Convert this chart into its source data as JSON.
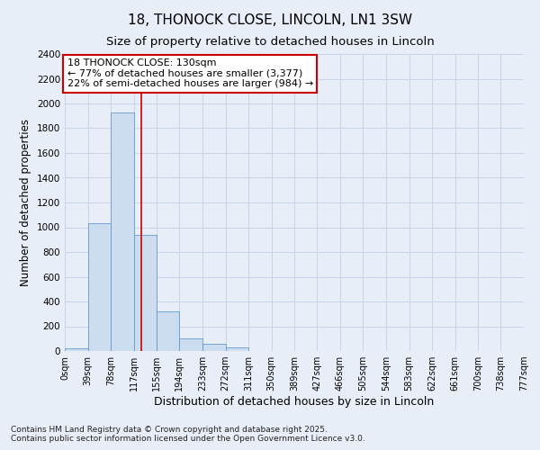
{
  "title": "18, THONOCK CLOSE, LINCOLN, LN1 3SW",
  "subtitle": "Size of property relative to detached houses in Lincoln",
  "xlabel": "Distribution of detached houses by size in Lincoln",
  "ylabel": "Number of detached properties",
  "bar_edges": [
    0,
    39,
    78,
    117,
    155,
    194,
    233,
    272,
    311,
    350,
    389,
    427,
    466,
    505,
    544,
    583,
    622,
    661,
    700,
    738,
    777
  ],
  "bar_values": [
    25,
    1030,
    1925,
    940,
    320,
    105,
    55,
    30,
    0,
    0,
    0,
    0,
    0,
    0,
    0,
    0,
    0,
    0,
    0,
    0
  ],
  "bar_color": "#ccddf0",
  "bar_edge_color": "#6699cc",
  "grid_color": "#c8d4e8",
  "background_color": "#e8eef8",
  "property_size": 130,
  "vline_color": "#cc0000",
  "annotation_line1": "18 THONOCK CLOSE: 130sqm",
  "annotation_line2": "← 77% of detached houses are smaller (3,377)",
  "annotation_line3": "22% of semi-detached houses are larger (984) →",
  "annotation_box_color": "#ffffff",
  "annotation_box_edge": "#cc0000",
  "ylim": [
    0,
    2400
  ],
  "yticks": [
    0,
    200,
    400,
    600,
    800,
    1000,
    1200,
    1400,
    1600,
    1800,
    2000,
    2200,
    2400
  ],
  "tick_labels": [
    "0sqm",
    "39sqm",
    "78sqm",
    "117sqm",
    "155sqm",
    "194sqm",
    "233sqm",
    "272sqm",
    "311sqm",
    "350sqm",
    "389sqm",
    "427sqm",
    "466sqm",
    "505sqm",
    "544sqm",
    "583sqm",
    "622sqm",
    "661sqm",
    "700sqm",
    "738sqm",
    "777sqm"
  ],
  "footer_text": "Contains HM Land Registry data © Crown copyright and database right 2025.\nContains public sector information licensed under the Open Government Licence v3.0.",
  "title_fontsize": 11,
  "subtitle_fontsize": 9.5,
  "tick_fontsize": 7,
  "ylabel_fontsize": 8.5,
  "xlabel_fontsize": 9,
  "footer_fontsize": 6.5,
  "annot_fontsize": 8
}
